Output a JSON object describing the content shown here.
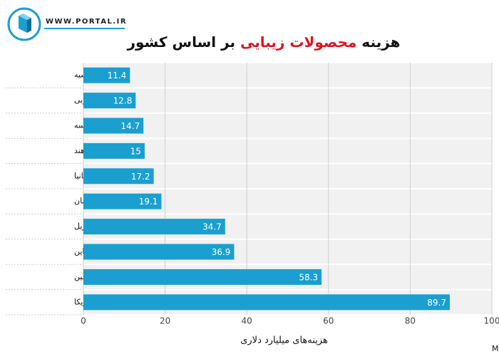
{
  "brand": "WWW.PORTAL.IR",
  "chart_data": {
    "type": "hbar",
    "title": "هزینه محصولات زیبایی بر اساس کشور",
    "title_highlight": "محصولات زیبایی",
    "categories": [
      "روسیه",
      "کره جنوبی",
      "فرانسه",
      "هند",
      "بریتانیا",
      "آلمان",
      "برزیل",
      "ژاپن",
      "چین",
      "ایالات متحده آمریکا"
    ],
    "values": [
      11.4,
      12.8,
      14.7,
      15,
      17.2,
      19.1,
      34.7,
      36.9,
      58.3,
      89.7
    ],
    "color": "#1a9fd0",
    "xlim": [
      0,
      100
    ],
    "xticks": [
      0,
      20,
      40,
      60,
      80,
      100
    ],
    "xlabel": "هزینه‌های میلیارد دلاری",
    "grid": true,
    "source": "منبع: Market.us Media"
  }
}
